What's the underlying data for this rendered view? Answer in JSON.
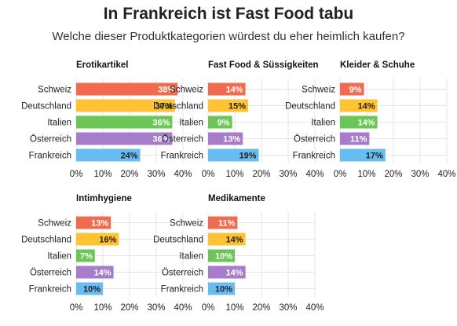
{
  "header": {
    "title": "In Frankreich ist Fast Food tabu",
    "subtitle": "Welche dieser Produktkategorien würdest du eher heimlich kaufen?"
  },
  "colors": {
    "Schweiz": "#F26B50",
    "Deutschland": "#FFC233",
    "Italien": "#6CC655",
    "Österreich": "#A77CCB",
    "Frankreich": "#67BDF2",
    "grid": "#e4e4e4"
  },
  "chart_data": [
    {
      "type": "bar",
      "orientation": "horizontal",
      "title": "Erotikartikel",
      "categories": [
        "Schweiz",
        "Deutschland",
        "Italien",
        "Österreich",
        "Frankreich"
      ],
      "values": [
        38,
        37,
        36,
        36,
        24
      ],
      "value_labels": [
        "38%",
        "37%",
        "36%",
        "36%",
        "24%"
      ],
      "xlim": [
        0,
        40
      ],
      "ticks": [
        "0%",
        "10%",
        "20%",
        "30%",
        "40%"
      ]
    },
    {
      "type": "bar",
      "orientation": "horizontal",
      "title": "Fast Food & Süssigkeiten",
      "categories": [
        "Schweiz",
        "Deutschland",
        "Italien",
        "Österreich",
        "Frankreich"
      ],
      "values": [
        14,
        15,
        9,
        13,
        19
      ],
      "value_labels": [
        "14%",
        "15%",
        "9%",
        "13%",
        "19%"
      ],
      "xlim": [
        0,
        40
      ],
      "ticks": [
        "0%",
        "10%",
        "20%",
        "30%",
        "40%"
      ]
    },
    {
      "type": "bar",
      "orientation": "horizontal",
      "title": "Kleider & Schuhe",
      "categories": [
        "Schweiz",
        "Deutschland",
        "Italien",
        "Österreich",
        "Frankreich"
      ],
      "values": [
        9,
        14,
        14,
        11,
        17
      ],
      "value_labels": [
        "9%",
        "14%",
        "14%",
        "11%",
        "17%"
      ],
      "xlim": [
        0,
        40
      ],
      "ticks": [
        "0%",
        "10%",
        "20%",
        "30%",
        "40%"
      ]
    },
    {
      "type": "bar",
      "orientation": "horizontal",
      "title": "Intimhygiene",
      "categories": [
        "Schweiz",
        "Deutschland",
        "Italien",
        "Österreich",
        "Frankreich"
      ],
      "values": [
        13,
        16,
        7,
        14,
        10
      ],
      "value_labels": [
        "13%",
        "16%",
        "7%",
        "14%",
        "10%"
      ],
      "xlim": [
        0,
        40
      ],
      "ticks": [
        "0%",
        "10%",
        "20%",
        "30%",
        "40%"
      ]
    },
    {
      "type": "bar",
      "orientation": "horizontal",
      "title": "Medikamente",
      "categories": [
        "Schweiz",
        "Deutschland",
        "Italien",
        "Österreich",
        "Frankreich"
      ],
      "values": [
        11,
        14,
        10,
        14,
        10
      ],
      "value_labels": [
        "11%",
        "14%",
        "10%",
        "14%",
        "10%"
      ],
      "xlim": [
        0,
        40
      ],
      "ticks": [
        "0%",
        "10%",
        "20%",
        "30%",
        "40%"
      ]
    }
  ]
}
